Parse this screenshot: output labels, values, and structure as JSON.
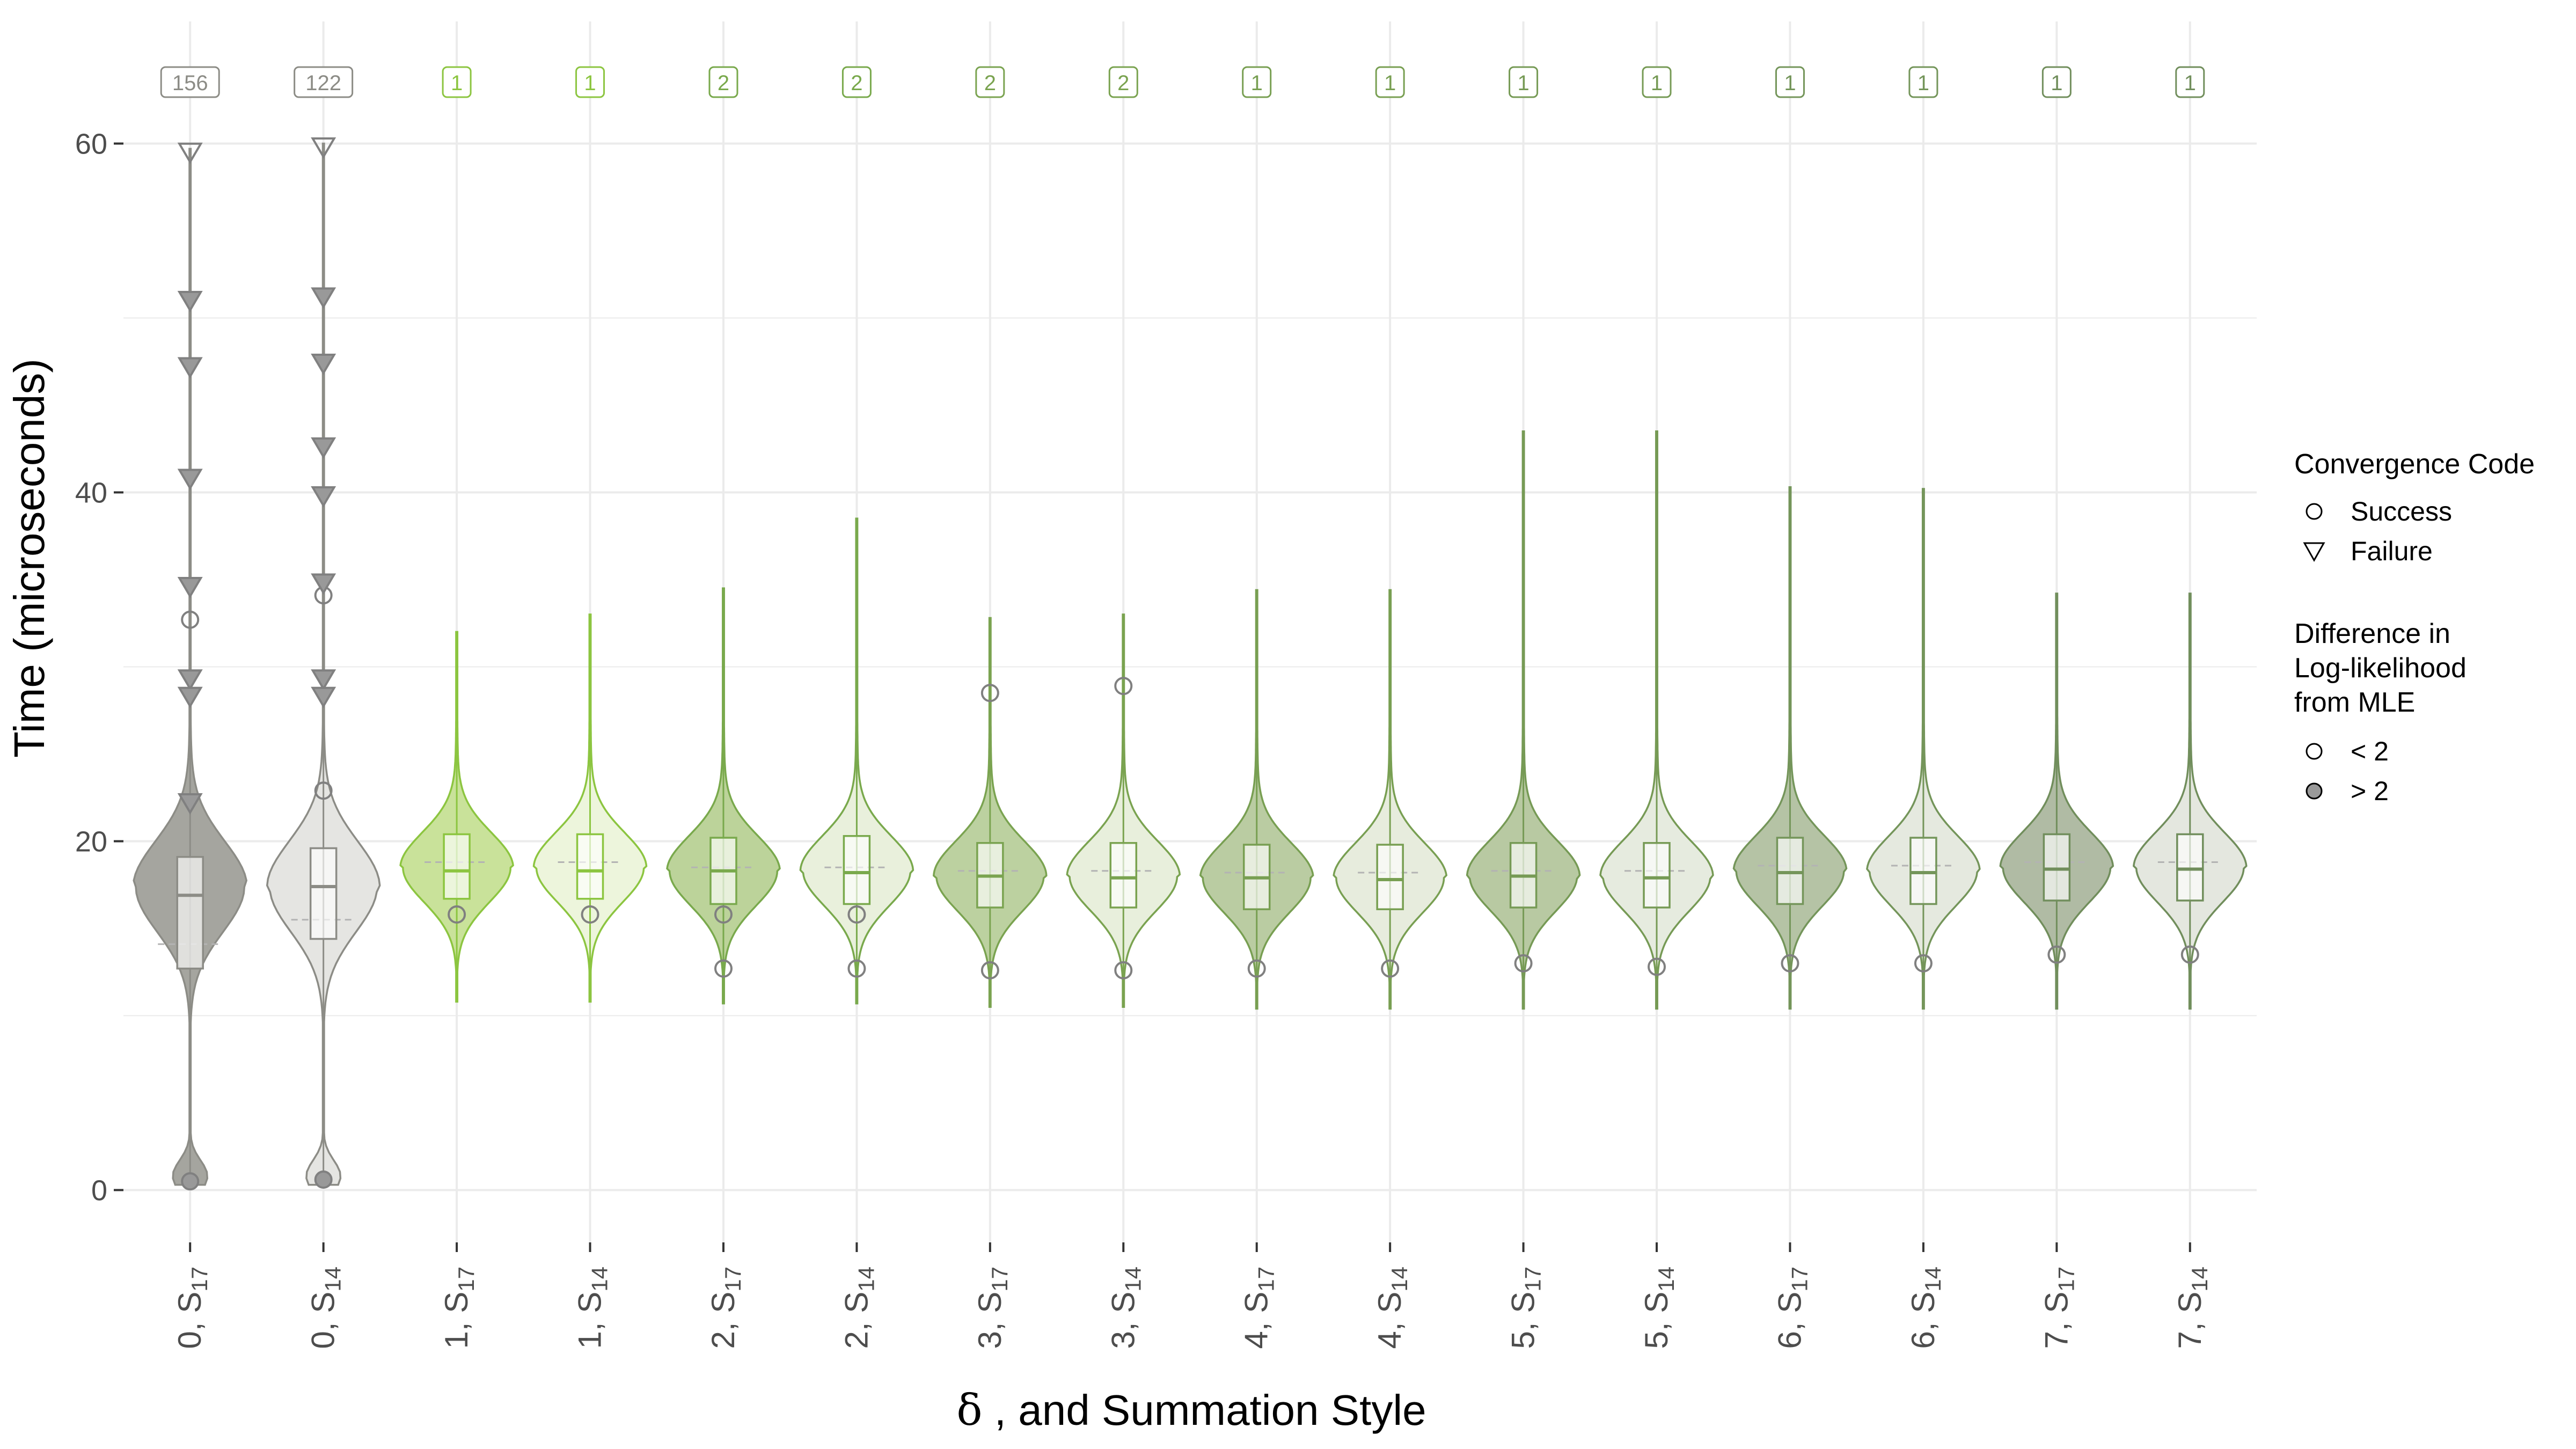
{
  "chart_data": {
    "type": "violin",
    "ylabel": "Time (microseconds)",
    "xlabel_parts": [
      "δ",
      " , and Summation Style"
    ],
    "ylim": [
      -3,
      67
    ],
    "yticks": [
      0,
      20,
      40,
      60
    ],
    "grid": true,
    "categories": [
      {
        "delta": "0",
        "sum": "17",
        "count": "156",
        "fill": "#a5a59f",
        "stroke": "#8c8c86",
        "ref_line": 14.1
      },
      {
        "delta": "0",
        "sum": "14",
        "count": "122",
        "fill": "#e5e5e2",
        "stroke": "#8c8c86",
        "ref_line": 15.5
      },
      {
        "delta": "1",
        "sum": "17",
        "count": "1",
        "fill": "#c9e29a",
        "stroke": "#8cc540",
        "ref_line": 18.8
      },
      {
        "delta": "1",
        "sum": "14",
        "count": "1",
        "fill": "#edf5dc",
        "stroke": "#8cc540",
        "ref_line": 18.8
      },
      {
        "delta": "2",
        "sum": "17",
        "count": "2",
        "fill": "#bcd39a",
        "stroke": "#79a94c",
        "ref_line": 18.5
      },
      {
        "delta": "2",
        "sum": "14",
        "count": "2",
        "fill": "#e9f0dc",
        "stroke": "#79a94c",
        "ref_line": 18.5
      },
      {
        "delta": "3",
        "sum": "17",
        "count": "2",
        "fill": "#bcd1a0",
        "stroke": "#7aa350",
        "ref_line": 18.3
      },
      {
        "delta": "3",
        "sum": "14",
        "count": "2",
        "fill": "#e8efdc",
        "stroke": "#7aa350",
        "ref_line": 18.3
      },
      {
        "delta": "4",
        "sum": "17",
        "count": "1",
        "fill": "#bacca2",
        "stroke": "#789f52",
        "ref_line": 18.2
      },
      {
        "delta": "4",
        "sum": "14",
        "count": "1",
        "fill": "#e7ecdd",
        "stroke": "#789f52",
        "ref_line": 18.2
      },
      {
        "delta": "5",
        "sum": "17",
        "count": "1",
        "fill": "#b8c9a2",
        "stroke": "#769a55",
        "ref_line": 18.3
      },
      {
        "delta": "5",
        "sum": "14",
        "count": "1",
        "fill": "#e6ebdf",
        "stroke": "#769a55",
        "ref_line": 18.3
      },
      {
        "delta": "6",
        "sum": "17",
        "count": "1",
        "fill": "#b5c3a5",
        "stroke": "#74955a",
        "ref_line": 18.6
      },
      {
        "delta": "6",
        "sum": "14",
        "count": "1",
        "fill": "#e5e9df",
        "stroke": "#74955a",
        "ref_line": 18.6
      },
      {
        "delta": "7",
        "sum": "17",
        "count": "1",
        "fill": "#b0bba4",
        "stroke": "#718e5c",
        "ref_line": 18.8
      },
      {
        "delta": "7",
        "sum": "14",
        "count": "1",
        "fill": "#e4e7df",
        "stroke": "#718e5c",
        "ref_line": 18.8
      }
    ],
    "violins": [
      {
        "min": 0.3,
        "max": 59.7,
        "q1": 12.7,
        "median": 16.9,
        "q3": 19.1,
        "peak": 17.4,
        "sd": 2.6,
        "low_mode": true,
        "points": [
          {
            "y": 0.5,
            "shape": "circle",
            "filled": true
          },
          {
            "y": 32.7,
            "shape": "circle",
            "filled": false
          },
          {
            "y": 59.5,
            "shape": "triangle",
            "filled": false
          },
          {
            "y": 51.0,
            "shape": "triangle",
            "filled": true
          },
          {
            "y": 47.2,
            "shape": "triangle",
            "filled": true
          },
          {
            "y": 40.8,
            "shape": "triangle",
            "filled": true
          },
          {
            "y": 34.6,
            "shape": "triangle",
            "filled": true
          },
          {
            "y": 29.3,
            "shape": "triangle",
            "filled": true
          },
          {
            "y": 28.3,
            "shape": "triangle",
            "filled": true
          },
          {
            "y": 22.2,
            "shape": "triangle",
            "filled": true
          }
        ]
      },
      {
        "min": 0.3,
        "max": 60.0,
        "q1": 14.4,
        "median": 17.4,
        "q3": 19.6,
        "peak": 17.4,
        "sd": 2.6,
        "low_mode": true,
        "points": [
          {
            "y": 0.6,
            "shape": "circle",
            "filled": true
          },
          {
            "y": 34.1,
            "shape": "circle",
            "filled": false
          },
          {
            "y": 22.9,
            "shape": "circle",
            "filled": false
          },
          {
            "y": 59.8,
            "shape": "triangle",
            "filled": false
          },
          {
            "y": 51.2,
            "shape": "triangle",
            "filled": true
          },
          {
            "y": 47.4,
            "shape": "triangle",
            "filled": true
          },
          {
            "y": 42.6,
            "shape": "triangle",
            "filled": true
          },
          {
            "y": 39.8,
            "shape": "triangle",
            "filled": true
          },
          {
            "y": 34.8,
            "shape": "triangle",
            "filled": true
          },
          {
            "y": 29.3,
            "shape": "triangle",
            "filled": true
          },
          {
            "y": 28.3,
            "shape": "triangle",
            "filled": true
          }
        ]
      },
      {
        "min": 10.8,
        "max": 32.0,
        "q1": 16.7,
        "median": 18.3,
        "q3": 20.4,
        "peak": 18.5,
        "sd": 2.0,
        "points": [
          {
            "y": 15.8,
            "shape": "circle",
            "filled": false
          }
        ]
      },
      {
        "min": 10.8,
        "max": 33.0,
        "q1": 16.7,
        "median": 18.3,
        "q3": 20.4,
        "peak": 18.5,
        "sd": 2.0,
        "points": [
          {
            "y": 15.8,
            "shape": "circle",
            "filled": false
          }
        ]
      },
      {
        "min": 10.7,
        "max": 34.5,
        "q1": 16.4,
        "median": 18.3,
        "q3": 20.2,
        "peak": 18.3,
        "sd": 2.0,
        "points": [
          {
            "y": 12.7,
            "shape": "circle",
            "filled": false
          },
          {
            "y": 15.8,
            "shape": "circle",
            "filled": false
          }
        ]
      },
      {
        "min": 10.7,
        "max": 38.5,
        "q1": 16.4,
        "median": 18.2,
        "q3": 20.3,
        "peak": 18.3,
        "sd": 2.0,
        "points": [
          {
            "y": 12.7,
            "shape": "circle",
            "filled": false
          },
          {
            "y": 15.8,
            "shape": "circle",
            "filled": false
          }
        ]
      },
      {
        "min": 10.5,
        "max": 32.8,
        "q1": 16.2,
        "median": 18.0,
        "q3": 19.9,
        "peak": 18.0,
        "sd": 2.0,
        "points": [
          {
            "y": 12.6,
            "shape": "circle",
            "filled": false
          },
          {
            "y": 28.5,
            "shape": "circle",
            "filled": false
          }
        ]
      },
      {
        "min": 10.5,
        "max": 33.0,
        "q1": 16.2,
        "median": 17.9,
        "q3": 19.9,
        "peak": 18.0,
        "sd": 2.0,
        "points": [
          {
            "y": 12.6,
            "shape": "circle",
            "filled": false
          },
          {
            "y": 28.9,
            "shape": "circle",
            "filled": false
          }
        ]
      },
      {
        "min": 10.4,
        "max": 34.4,
        "q1": 16.1,
        "median": 17.9,
        "q3": 19.8,
        "peak": 17.9,
        "sd": 2.0,
        "points": [
          {
            "y": 12.7,
            "shape": "circle",
            "filled": false
          }
        ]
      },
      {
        "min": 10.4,
        "max": 34.4,
        "q1": 16.1,
        "median": 17.8,
        "q3": 19.8,
        "peak": 17.9,
        "sd": 2.0,
        "points": [
          {
            "y": 12.7,
            "shape": "circle",
            "filled": false
          }
        ]
      },
      {
        "min": 10.4,
        "max": 43.5,
        "q1": 16.2,
        "median": 18.0,
        "q3": 19.9,
        "peak": 18.0,
        "sd": 2.0,
        "points": [
          {
            "y": 13.0,
            "shape": "circle",
            "filled": false
          }
        ]
      },
      {
        "min": 10.4,
        "max": 43.5,
        "q1": 16.2,
        "median": 17.9,
        "q3": 19.9,
        "peak": 18.0,
        "sd": 2.0,
        "points": [
          {
            "y": 12.8,
            "shape": "circle",
            "filled": false
          }
        ]
      },
      {
        "min": 10.4,
        "max": 40.3,
        "q1": 16.4,
        "median": 18.2,
        "q3": 20.2,
        "peak": 18.3,
        "sd": 2.0,
        "points": [
          {
            "y": 13.0,
            "shape": "circle",
            "filled": false
          }
        ]
      },
      {
        "min": 10.4,
        "max": 40.2,
        "q1": 16.4,
        "median": 18.2,
        "q3": 20.2,
        "peak": 18.3,
        "sd": 2.0,
        "points": [
          {
            "y": 13.0,
            "shape": "circle",
            "filled": false
          }
        ]
      },
      {
        "min": 10.4,
        "max": 34.2,
        "q1": 16.6,
        "median": 18.4,
        "q3": 20.4,
        "peak": 18.5,
        "sd": 2.0,
        "points": [
          {
            "y": 13.5,
            "shape": "circle",
            "filled": false
          }
        ]
      },
      {
        "min": 10.4,
        "max": 34.2,
        "q1": 16.6,
        "median": 18.4,
        "q3": 20.4,
        "peak": 18.5,
        "sd": 2.0,
        "points": [
          {
            "y": 13.5,
            "shape": "circle",
            "filled": false
          }
        ]
      }
    ],
    "legend": {
      "placement": "right",
      "shape_title": "Convergence Code",
      "shape_items": [
        {
          "label": "Success",
          "shape": "circle"
        },
        {
          "label": "Failure",
          "shape": "triangle"
        }
      ],
      "fill_title_lines": [
        "Difference in",
        "Log-likelihood",
        "from MLE"
      ],
      "fill_items": [
        {
          "label": "< 2",
          "filled": false
        },
        {
          "label": "> 2",
          "filled": true
        }
      ]
    },
    "colors": {
      "grid": "#ebebeb",
      "text": "#4d4d4d",
      "point_fill": "#999999",
      "point_stroke": "#808080"
    }
  }
}
